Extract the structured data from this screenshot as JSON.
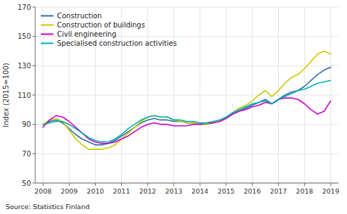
{
  "chart_data": {
    "type": "line",
    "ylabel": "Index (2015=100)",
    "source": "Source: Statistics Finland",
    "x": [
      2008.0,
      2008.25,
      2008.5,
      2008.75,
      2009.0,
      2009.25,
      2009.5,
      2009.75,
      2010.0,
      2010.25,
      2010.5,
      2010.75,
      2011.0,
      2011.25,
      2011.5,
      2011.75,
      2012.0,
      2012.25,
      2012.5,
      2012.75,
      2013.0,
      2013.25,
      2013.5,
      2013.75,
      2014.0,
      2014.25,
      2014.5,
      2014.75,
      2015.0,
      2015.25,
      2015.5,
      2015.75,
      2016.0,
      2016.25,
      2016.5,
      2016.75,
      2017.0,
      2017.25,
      2017.5,
      2017.75,
      2018.0,
      2018.25,
      2018.5,
      2018.75,
      2019.0
    ],
    "series": [
      {
        "name": "Construction",
        "color": "#2e6da4",
        "values": [
          90,
          92,
          93,
          91,
          87,
          83,
          80,
          78,
          76,
          76,
          77,
          79,
          82,
          85,
          88,
          91,
          93,
          94,
          93,
          93,
          92,
          92,
          91,
          91,
          90,
          90,
          91,
          92,
          94,
          97,
          99,
          101,
          103,
          105,
          107,
          104,
          107,
          110,
          112,
          113,
          116,
          120,
          124,
          127,
          129
        ]
      },
      {
        "name": "Construction of buildings",
        "color": "#c8c800",
        "values": [
          90,
          93,
          94,
          92,
          86,
          80,
          76,
          73,
          73,
          73,
          74,
          76,
          80,
          84,
          88,
          92,
          95,
          96,
          95,
          95,
          93,
          92,
          91,
          91,
          90,
          90,
          91,
          92,
          94,
          98,
          101,
          103,
          106,
          110,
          113,
          109,
          113,
          118,
          122,
          124,
          128,
          133,
          138,
          140,
          138
        ]
      },
      {
        "name": "Civil engineering",
        "color": "#c800c8",
        "values": [
          88,
          93,
          96,
          95,
          92,
          88,
          84,
          80,
          78,
          77,
          77,
          78,
          80,
          82,
          85,
          88,
          90,
          91,
          90,
          90,
          89,
          89,
          89,
          90,
          90,
          91,
          91,
          92,
          94,
          97,
          99,
          100,
          102,
          103,
          105,
          104,
          107,
          108,
          108,
          107,
          104,
          100,
          97,
          99,
          106
        ]
      },
      {
        "name": "Specialised construction activities",
        "color": "#00b0b0",
        "values": [
          90,
          91,
          92,
          92,
          90,
          87,
          84,
          81,
          79,
          78,
          78,
          80,
          83,
          87,
          90,
          93,
          95,
          96,
          95,
          95,
          93,
          93,
          92,
          92,
          91,
          91,
          92,
          93,
          95,
          98,
          100,
          102,
          104,
          105,
          106,
          104,
          107,
          109,
          111,
          113,
          114,
          116,
          118,
          119,
          120
        ]
      }
    ],
    "xlim": [
      2007.7,
      2019.3
    ],
    "xticks": [
      2008,
      2009,
      2010,
      2011,
      2012,
      2013,
      2014,
      2015,
      2016,
      2017,
      2018,
      2019
    ],
    "ylim": [
      50,
      170
    ],
    "yticks": [
      50,
      70,
      90,
      110,
      130,
      150,
      170
    ],
    "grid": true,
    "legend": "upper left"
  }
}
